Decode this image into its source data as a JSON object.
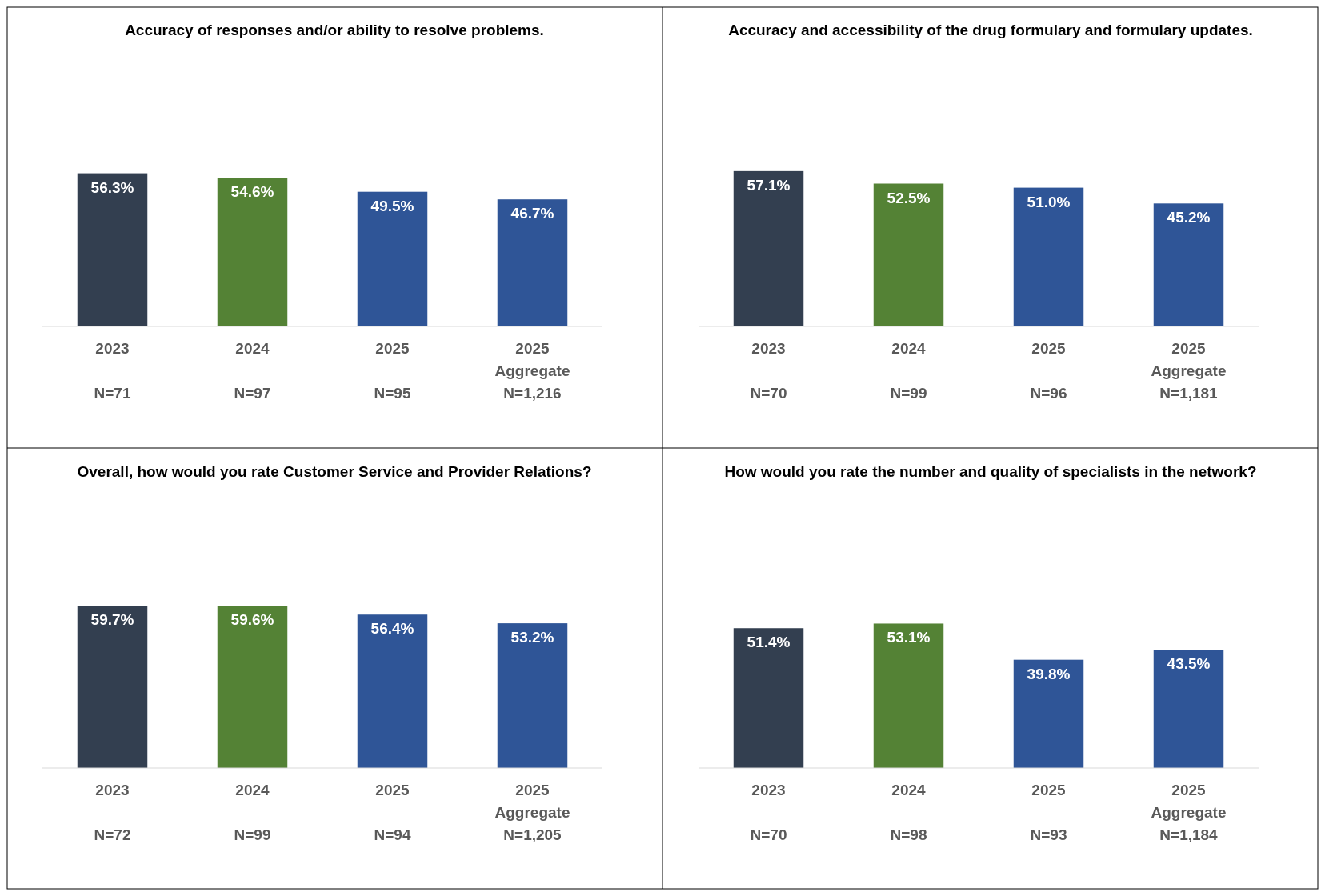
{
  "chart_data": [
    {
      "type": "bar",
      "title": "Accuracy of responses and/or ability to resolve problems.",
      "categories": [
        "2023\nN=71",
        "2024\nN=97",
        "2025\nN=95",
        "2025\nAggregate\nN=1,216"
      ],
      "values": [
        56.3,
        54.6,
        49.5,
        46.7
      ],
      "value_labels": [
        "56.3%",
        "54.6%",
        "49.5%",
        "46.7%"
      ],
      "colors": [
        "#333f50",
        "#548235",
        "#2f5597",
        "#2f5597"
      ],
      "tick_labels": "x"
    },
    {
      "type": "bar",
      "title": "Accuracy and accessibility of the drug formulary and formulary updates.",
      "categories": [
        "2023\nN=70",
        "2024\nN=99",
        "2025\nN=96",
        "2025\nAggregate\nN=1,181"
      ],
      "values": [
        57.1,
        52.5,
        51.0,
        45.2
      ],
      "value_labels": [
        "57.1%",
        "52.5%",
        "51.0%",
        "45.2%"
      ],
      "colors": [
        "#333f50",
        "#548235",
        "#2f5597",
        "#2f5597"
      ],
      "tick_labels": "x"
    },
    {
      "type": "bar",
      "title": "Overall, how would you rate Customer Service and Provider Relations?",
      "categories": [
        "2023\nN=72",
        "2024\nN=99",
        "2025\nN=94",
        "2025\nAggregate\nN=1,205"
      ],
      "values": [
        59.7,
        59.6,
        56.4,
        53.2
      ],
      "value_labels": [
        "59.7%",
        "59.6%",
        "56.4%",
        "53.2%"
      ],
      "colors": [
        "#333f50",
        "#548235",
        "#2f5597",
        "#2f5597"
      ],
      "tick_labels": "x"
    },
    {
      "type": "bar",
      "title": "How would you rate the number and quality of specialists in the network?",
      "categories": [
        "2023\nN=70",
        "2024\nN=98",
        "2025\nN=93",
        "2025\nAggregate\nN=1,184"
      ],
      "values": [
        51.4,
        53.1,
        39.8,
        43.5
      ],
      "value_labels": [
        "51.4%",
        "53.1%",
        "39.8%",
        "43.5%"
      ],
      "colors": [
        "#333f50",
        "#548235",
        "#2f5597",
        "#2f5597"
      ],
      "tick_labels": "x"
    }
  ]
}
